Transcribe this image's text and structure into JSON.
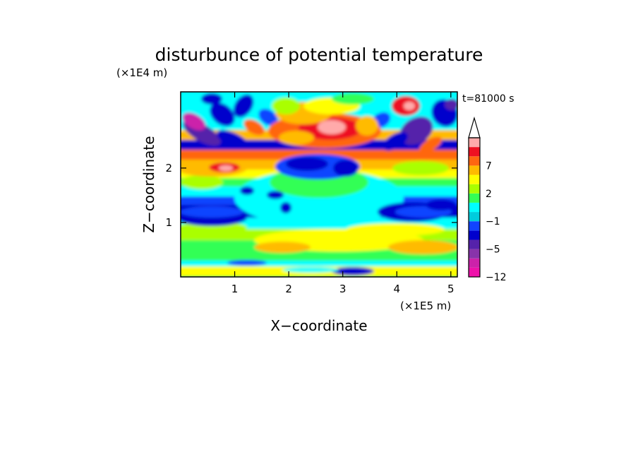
{
  "chart_data": {
    "type": "heatmap",
    "title": "disturbunce of potential temperature",
    "time_label": "t=81000 s",
    "xlabel": "X−coordinate",
    "ylabel": "Z−coordinate",
    "x_unit": "(×1E5 m)",
    "y_unit": "(×1E4 m)",
    "xlim": [
      0,
      5.12
    ],
    "ylim": [
      0,
      3.4
    ],
    "x_ticks": [
      {
        "v": 1,
        "label": "1"
      },
      {
        "v": 2,
        "label": "2"
      },
      {
        "v": 3,
        "label": "3"
      },
      {
        "v": 4,
        "label": "4"
      },
      {
        "v": 5,
        "label": "5"
      }
    ],
    "y_ticks": [
      {
        "v": 1,
        "label": "1"
      },
      {
        "v": 2,
        "label": "2"
      }
    ],
    "colorbar": {
      "levels": [
        -12,
        -9,
        -7,
        -5,
        -3,
        -2,
        -1,
        0,
        1,
        2,
        3,
        5,
        7,
        9,
        12
      ],
      "colors": [
        "#ee11aa",
        "#cc22aa",
        "#8833aa",
        "#5522aa",
        "#0000cc",
        "#1144ff",
        "#00ccdd",
        "#00ffff",
        "#33ff55",
        "#aaff00",
        "#ffff00",
        "#ffbb00",
        "#ff6611",
        "#ee1122",
        "#ffaaaa"
      ],
      "extend_top_color": "#ffffff",
      "tick_labels": [
        {
          "v": 7,
          "label": "7"
        },
        {
          "v": 2,
          "label": "2"
        },
        {
          "v": -1,
          "label": "−1"
        },
        {
          "v": -5,
          "label": "−5"
        },
        {
          "v": -12,
          "label": "−12"
        }
      ]
    }
  }
}
